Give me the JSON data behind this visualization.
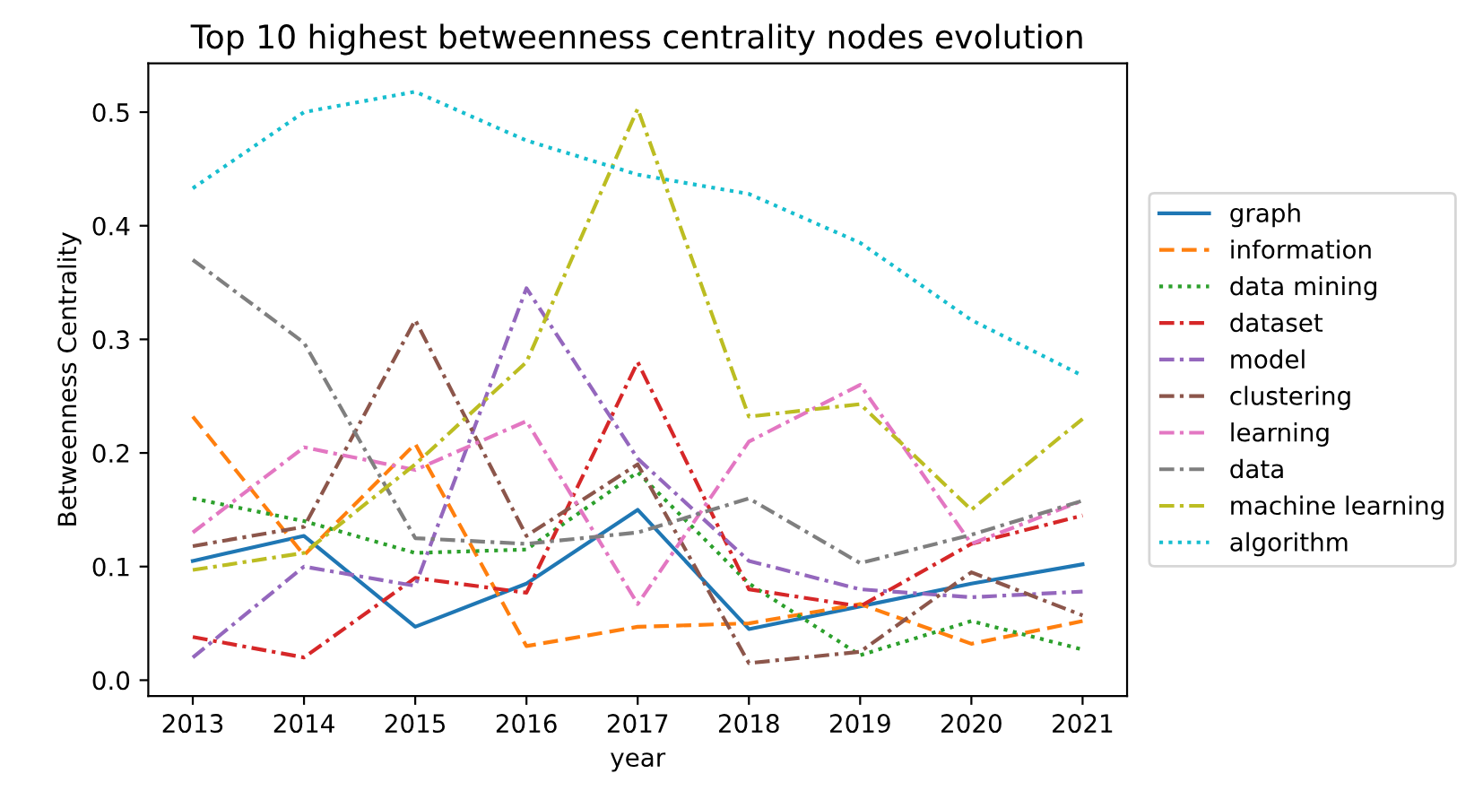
{
  "chart_data": {
    "type": "line",
    "title": "Top 10 highest betweenness centrality nodes evolution",
    "xlabel": "year",
    "ylabel": "Betweenness Centrality",
    "x": [
      2013,
      2014,
      2015,
      2016,
      2017,
      2018,
      2019,
      2020,
      2021
    ],
    "xlim": [
      2012.6,
      2021.4
    ],
    "xticks": [
      2013,
      2014,
      2015,
      2016,
      2017,
      2018,
      2019,
      2020,
      2021
    ],
    "ylim": [
      -0.014,
      0.543
    ],
    "yticks": [
      {
        "value": 0,
        "label": "0.0"
      },
      0.1,
      0.2,
      0.3,
      0.4,
      0.5
    ],
    "grid": false,
    "legend": "right",
    "marker": "none",
    "series": [
      {
        "name": "graph",
        "color": "#1f77b4",
        "line_style": "solid",
        "values": [
          0.105,
          0.127,
          0.047,
          0.085,
          0.15,
          0.045,
          0.065,
          0.085,
          0.102
        ]
      },
      {
        "name": "information",
        "color": "#ff7f0e",
        "line_style": "dashed",
        "values": [
          0.232,
          0.11,
          0.208,
          0.03,
          0.047,
          0.05,
          0.067,
          0.032,
          0.052
        ]
      },
      {
        "name": "data mining",
        "color": "#2ca02c",
        "line_style": "dotted",
        "values": [
          0.16,
          0.14,
          0.112,
          0.115,
          0.183,
          0.085,
          0.022,
          0.052,
          0.027
        ]
      },
      {
        "name": "dataset",
        "color": "#d62728",
        "line_style": "dashdot",
        "values": [
          0.038,
          0.02,
          0.09,
          0.077,
          0.28,
          0.08,
          0.065,
          0.12,
          0.145
        ]
      },
      {
        "name": "model",
        "color": "#9467bd",
        "line_style": "dashdot",
        "values": [
          0.02,
          0.1,
          0.083,
          0.345,
          0.195,
          0.105,
          0.08,
          0.073,
          0.078
        ]
      },
      {
        "name": "clustering",
        "color": "#8c564b",
        "line_style": "dashdot",
        "values": [
          0.118,
          0.135,
          0.317,
          0.127,
          0.19,
          0.015,
          0.025,
          0.095,
          0.057
        ]
      },
      {
        "name": "learning",
        "color": "#e377c2",
        "line_style": "dashdot",
        "values": [
          0.13,
          0.205,
          0.185,
          0.228,
          0.067,
          0.21,
          0.26,
          0.12,
          0.158
        ]
      },
      {
        "name": "data",
        "color": "#7f7f7f",
        "line_style": "dashdot",
        "values": [
          0.37,
          0.297,
          0.125,
          0.12,
          0.13,
          0.16,
          0.103,
          0.128,
          0.158
        ]
      },
      {
        "name": "machine learning",
        "color": "#bcbd22",
        "line_style": "dashdot",
        "values": [
          0.097,
          0.112,
          0.19,
          0.28,
          0.503,
          0.232,
          0.243,
          0.15,
          0.23
        ]
      },
      {
        "name": "algorithm",
        "color": "#17becf",
        "line_style": "dotted",
        "values": [
          0.433,
          0.5,
          0.518,
          0.475,
          0.445,
          0.428,
          0.385,
          0.317,
          0.268
        ]
      }
    ]
  }
}
